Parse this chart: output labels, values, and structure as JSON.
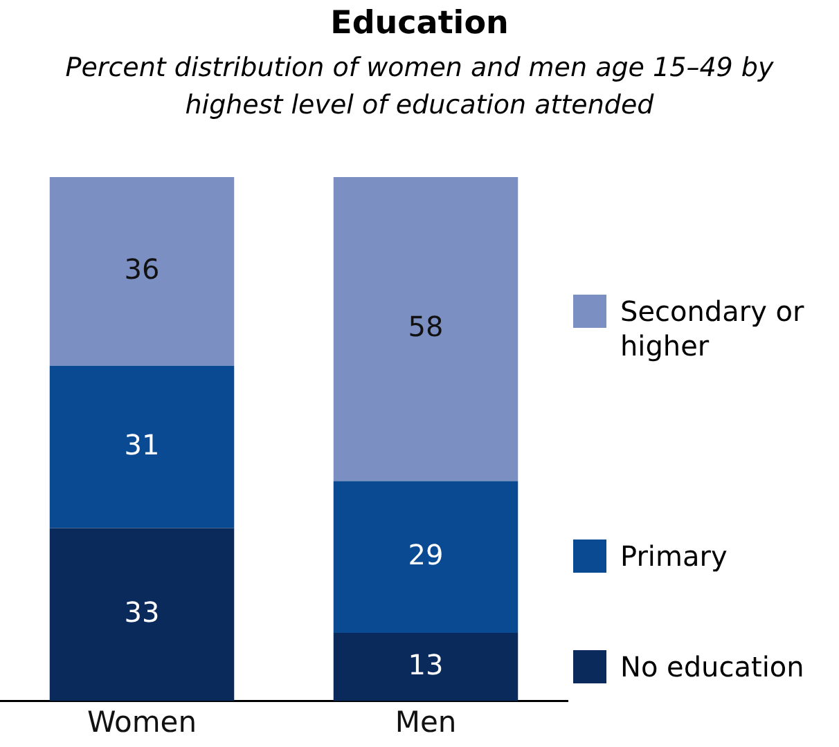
{
  "chart_data": {
    "type": "bar",
    "title": "Education",
    "subtitle": "Percent distribution of women and men age 15–49 by highest level of education attended",
    "categories": [
      "Women",
      "Men"
    ],
    "series": [
      {
        "name": "No education",
        "color": "#0b2a5c",
        "values": [
          33,
          13
        ]
      },
      {
        "name": "Primary",
        "color": "#0a4a92",
        "values": [
          31,
          29
        ]
      },
      {
        "name": "Secondary or higher",
        "color": "#7b8fc3",
        "values": [
          36,
          58
        ]
      }
    ],
    "stacked": true,
    "ylim": [
      0,
      100
    ],
    "tick_labels": "x",
    "grid": false,
    "legend": "right",
    "data_labels": true
  }
}
